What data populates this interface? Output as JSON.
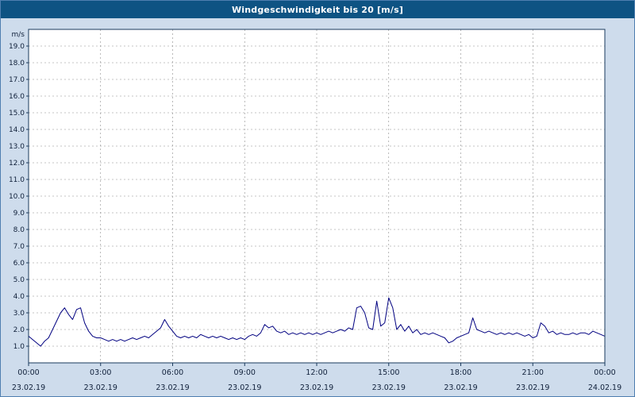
{
  "window": {
    "title": "Windgeschwindigkeit bis 20 [m/s]"
  },
  "colors": {
    "titlebar": "#0e5383",
    "titlebar_text": "#ffffff",
    "background": "#cedcec",
    "plot_background": "#ffffff",
    "plot_border": "#1a3a5c",
    "grid": "#8a8a8a",
    "line": "#000080",
    "axis_text": "#10203a"
  },
  "chart_data": {
    "type": "line",
    "title": "Windgeschwindigkeit bis 20 [m/s]",
    "ylabel": "m/s",
    "xlabel": "",
    "ylim": [
      0,
      20
    ],
    "grid": true,
    "legend": "none",
    "yticks": [
      "1.0",
      "2.0",
      "3.0",
      "4.0",
      "5.0",
      "6.0",
      "7.0",
      "8.0",
      "9.0",
      "10.0",
      "11.0",
      "12.0",
      "13.0",
      "14.0",
      "15.0",
      "16.0",
      "17.0",
      "18.0",
      "19.0"
    ],
    "ytick_values": [
      1,
      2,
      3,
      4,
      5,
      6,
      7,
      8,
      9,
      10,
      11,
      12,
      13,
      14,
      15,
      16,
      17,
      18,
      19
    ],
    "xticks": [
      {
        "hour": 0,
        "time": "00:00",
        "date": "23.02.19"
      },
      {
        "hour": 3,
        "time": "03:00",
        "date": "23.02.19"
      },
      {
        "hour": 6,
        "time": "06:00",
        "date": "23.02.19"
      },
      {
        "hour": 9,
        "time": "09:00",
        "date": "23.02.19"
      },
      {
        "hour": 12,
        "time": "12:00",
        "date": "23.02.19"
      },
      {
        "hour": 15,
        "time": "15:00",
        "date": "23.02.19"
      },
      {
        "hour": 18,
        "time": "18:00",
        "date": "23.02.19"
      },
      {
        "hour": 21,
        "time": "21:00",
        "date": "23.02.19"
      },
      {
        "hour": 24,
        "time": "00:00",
        "date": "24.02.19"
      }
    ],
    "x_start_hour": 0,
    "x_step_hours": 0.166667,
    "sample_interval_minutes": 10,
    "series_name": "Windgeschwindigkeit [m/s]",
    "values": [
      1.6,
      1.4,
      1.2,
      1.0,
      1.3,
      1.5,
      2.0,
      2.5,
      3.0,
      3.3,
      2.9,
      2.6,
      3.2,
      3.3,
      2.4,
      1.9,
      1.6,
      1.5,
      1.5,
      1.4,
      1.3,
      1.4,
      1.3,
      1.4,
      1.3,
      1.4,
      1.5,
      1.4,
      1.5,
      1.6,
      1.5,
      1.7,
      1.9,
      2.1,
      2.6,
      2.2,
      1.9,
      1.6,
      1.5,
      1.6,
      1.5,
      1.6,
      1.5,
      1.7,
      1.6,
      1.5,
      1.6,
      1.5,
      1.6,
      1.5,
      1.4,
      1.5,
      1.4,
      1.5,
      1.4,
      1.6,
      1.7,
      1.6,
      1.8,
      2.3,
      2.1,
      2.2,
      1.9,
      1.8,
      1.9,
      1.7,
      1.8,
      1.7,
      1.8,
      1.7,
      1.8,
      1.7,
      1.8,
      1.7,
      1.8,
      1.9,
      1.8,
      1.9,
      2.0,
      1.9,
      2.1,
      2.0,
      3.3,
      3.4,
      3.0,
      2.1,
      2.0,
      3.7,
      2.2,
      2.4,
      3.9,
      3.3,
      2.0,
      2.3,
      1.9,
      2.2,
      1.8,
      2.0,
      1.7,
      1.8,
      1.7,
      1.8,
      1.7,
      1.6,
      1.5,
      1.2,
      1.3,
      1.5,
      1.6,
      1.7,
      1.8,
      2.7,
      2.0,
      1.9,
      1.8,
      1.9,
      1.8,
      1.7,
      1.8,
      1.7,
      1.8,
      1.7,
      1.8,
      1.7,
      1.6,
      1.7,
      1.5,
      1.6,
      2.4,
      2.2,
      1.8,
      1.9,
      1.7,
      1.8,
      1.7,
      1.7,
      1.8,
      1.7,
      1.8,
      1.8,
      1.7,
      1.9,
      1.8,
      1.7,
      1.6
    ]
  }
}
